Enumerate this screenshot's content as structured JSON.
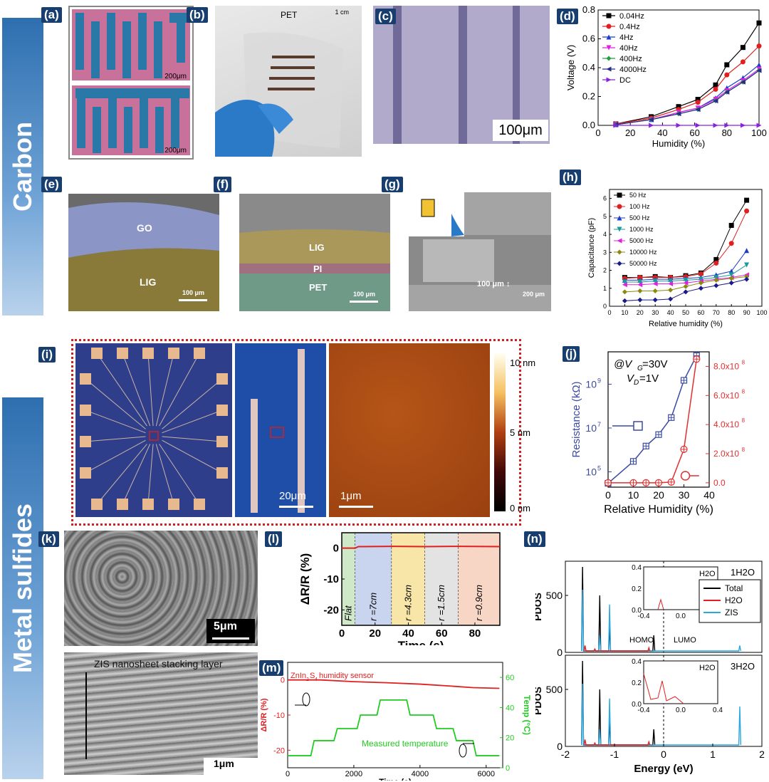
{
  "side_labels": {
    "carbon": "Carbon",
    "metal_sulfides": "Metal sulfides"
  },
  "panels": {
    "a": {
      "tag": "(a)",
      "scale1": "200μm",
      "scale2": "200μm"
    },
    "b": {
      "tag": "(b)",
      "label": "PET",
      "scale": "1 cm"
    },
    "c": {
      "tag": "(c)",
      "scale": "100μm"
    },
    "d": {
      "tag": "(d)"
    },
    "e": {
      "tag": "(e)",
      "top": "GO",
      "bottom": "LIG",
      "scale": "100 μm"
    },
    "f": {
      "tag": "(f)",
      "l1": "LIG",
      "l2": "PI",
      "l3": "PET",
      "scale": "100 μm"
    },
    "g": {
      "tag": "(g)",
      "annot": "100 μm ↕",
      "scale": "200 μm"
    },
    "h": {
      "tag": "(h)"
    },
    "i": {
      "tag": "(i)",
      "scale1": "20μm",
      "scale2": "1μm",
      "cbar": [
        "10 nm",
        "5 nm",
        "0 nm"
      ]
    },
    "j": {
      "tag": "(j)",
      "cond1": "@V",
      "cond1_sub": "G",
      "cond1_rest": "=30V",
      "cond2": "V",
      "cond2_sub": "D",
      "cond2_rest": "=1V"
    },
    "k": {
      "tag": "(k)",
      "scale": "5μm",
      "caption": "ZIS nanosheet stacking layer",
      "scale2": "1μm"
    },
    "l": {
      "tag": "(l)"
    },
    "m": {
      "tag": "(m)",
      "legend_red": "ZnIn",
      "legend_red_rest": "humidity sensor",
      "legend_green": "Measured temperature"
    },
    "n": {
      "tag": "(n)"
    }
  },
  "chart_data": [
    {
      "id": "d",
      "type": "line",
      "xlabel": "Humidity (%)",
      "ylabel": "Voltage (V)",
      "xlim": [
        0,
        100
      ],
      "ylim": [
        0,
        0.8
      ],
      "xticks": [
        0,
        20,
        40,
        60,
        80,
        100
      ],
      "yticks": [
        0.0,
        0.2,
        0.4,
        0.6,
        0.8
      ],
      "x": [
        11,
        33,
        50,
        62,
        73,
        80,
        90,
        100
      ],
      "series": [
        {
          "name": "0.04Hz",
          "color": "#000000",
          "marker": "square",
          "values": [
            0.01,
            0.06,
            0.13,
            0.18,
            0.28,
            0.42,
            0.54,
            0.71
          ]
        },
        {
          "name": "0.4Hz",
          "color": "#e02020",
          "marker": "circle",
          "values": [
            0.01,
            0.05,
            0.11,
            0.16,
            0.25,
            0.35,
            0.44,
            0.55
          ]
        },
        {
          "name": "4Hz",
          "color": "#1a3ccc",
          "marker": "triangle",
          "values": [
            0.005,
            0.04,
            0.09,
            0.12,
            0.19,
            0.26,
            0.33,
            0.42
          ]
        },
        {
          "name": "40Hz",
          "color": "#e020e0",
          "marker": "tri-down",
          "values": [
            0.005,
            0.04,
            0.09,
            0.12,
            0.18,
            0.24,
            0.31,
            0.39
          ]
        },
        {
          "name": "400Hz",
          "color": "#20a040",
          "marker": "diamond",
          "values": [
            0.005,
            0.04,
            0.08,
            0.11,
            0.17,
            0.23,
            0.3,
            0.38
          ]
        },
        {
          "name": "4000Hz",
          "color": "#2a2a8a",
          "marker": "tri-left",
          "values": [
            0.005,
            0.04,
            0.08,
            0.11,
            0.17,
            0.23,
            0.3,
            0.38
          ]
        },
        {
          "name": "DC",
          "color": "#8a20e0",
          "marker": "tri-right",
          "values": [
            0.0,
            0.0,
            0.0,
            0.0,
            0.0,
            0.0,
            0.0,
            0.0
          ]
        }
      ]
    },
    {
      "id": "h",
      "type": "line",
      "xlabel": "Relative humidity (%)",
      "ylabel": "Capacitance (pF)",
      "xlim": [
        0,
        100
      ],
      "ylim": [
        0,
        6.5
      ],
      "xticks": [
        0,
        10,
        20,
        30,
        40,
        50,
        60,
        70,
        80,
        90,
        100
      ],
      "yticks": [
        0,
        1,
        2,
        3,
        4,
        5,
        6
      ],
      "x": [
        10,
        20,
        30,
        40,
        50,
        60,
        70,
        80,
        90
      ],
      "series": [
        {
          "name": "50 Hz",
          "color": "#000000",
          "values": [
            1.6,
            1.6,
            1.65,
            1.6,
            1.7,
            1.85,
            2.6,
            4.5,
            5.9
          ]
        },
        {
          "name": "100 Hz",
          "color": "#e02020",
          "values": [
            1.55,
            1.6,
            1.6,
            1.6,
            1.65,
            1.8,
            2.4,
            3.5,
            5.3
          ]
        },
        {
          "name": "500 Hz",
          "color": "#1a3ccc",
          "values": [
            1.45,
            1.45,
            1.5,
            1.5,
            1.55,
            1.6,
            1.75,
            1.95,
            3.1
          ]
        },
        {
          "name": "1000 Hz",
          "color": "#1a9a9a",
          "values": [
            1.35,
            1.35,
            1.4,
            1.4,
            1.45,
            1.5,
            1.6,
            1.75,
            2.3
          ]
        },
        {
          "name": "5000 Hz",
          "color": "#e020e0",
          "values": [
            1.2,
            1.2,
            1.25,
            1.25,
            1.3,
            1.4,
            1.5,
            1.6,
            1.75
          ]
        },
        {
          "name": "10000 Hz",
          "color": "#8a8a10",
          "values": [
            0.8,
            0.85,
            0.85,
            0.9,
            1.1,
            1.3,
            1.45,
            1.55,
            1.65
          ]
        },
        {
          "name": "50000 Hz",
          "color": "#1a1a8a",
          "values": [
            0.3,
            0.35,
            0.35,
            0.4,
            0.8,
            1.0,
            1.15,
            1.3,
            1.5
          ]
        }
      ]
    },
    {
      "id": "j",
      "type": "line",
      "xlabel": "Relative Humidity (%)",
      "ylabel": "Resistance (kΩ)",
      "xlim": [
        0,
        40
      ],
      "xticks": [
        0,
        10,
        20,
        30,
        40
      ],
      "yticks_left": [
        "10^5",
        "10^7",
        "10^9"
      ],
      "yticks_right": [
        "0.0",
        "2.0x10^8",
        "4.0x10^8",
        "6.0x10^8",
        "8.0x10^8"
      ],
      "x": [
        0,
        10,
        15,
        20,
        25,
        30,
        35
      ],
      "series": [
        {
          "name": "log",
          "color": "#3a4aa0",
          "axis": "left-log",
          "values": [
            30000,
            300000,
            1500000,
            5000000,
            30000000,
            1500000000,
            20000000000
          ]
        },
        {
          "name": "linear",
          "color": "#e03030",
          "axis": "right",
          "values": [
            0,
            0,
            0,
            0,
            5000000,
            230000000,
            850000000
          ]
        }
      ]
    },
    {
      "id": "l",
      "type": "line",
      "xlabel": "Time (s)",
      "ylabel": "ΔR/R",
      "xlim": [
        0,
        95
      ],
      "ylim": [
        -25,
        5
      ],
      "xticks": [
        0,
        20,
        40,
        60,
        80
      ],
      "yticks": [
        0,
        -10,
        -20
      ],
      "regions": [
        {
          "label": "Flat",
          "from": 0,
          "to": 8,
          "color": "#cfe8c8"
        },
        {
          "label": "r =7cm",
          "from": 8,
          "to": 30,
          "color": "#c9d4ee"
        },
        {
          "label": "r =4.3cm",
          "from": 30,
          "to": 50,
          "color": "#f7e6a8"
        },
        {
          "label": "r =1.5cm",
          "from": 50,
          "to": 70,
          "color": "#e3e3e3"
        },
        {
          "label": "r =0.9cm",
          "from": 70,
          "to": 95,
          "color": "#f8d6c6"
        }
      ],
      "series": [
        {
          "name": "signal",
          "color": "#e02020",
          "x": [
            0,
            8,
            10,
            30,
            50,
            70,
            95
          ],
          "values": [
            0,
            0,
            0.5,
            0.6,
            0.5,
            0.6,
            0.5
          ]
        }
      ]
    },
    {
      "id": "m",
      "type": "line",
      "xlabel": "Time (s)",
      "ylabel_left": "ΔR/R",
      "ylabel_right": "Temp (°C)",
      "xlim": [
        0,
        6500
      ],
      "xticks": [
        0,
        2000,
        4000,
        6000
      ],
      "ylim_left": [
        -25,
        5
      ],
      "yticks_left": [
        0,
        -10,
        -20
      ],
      "ylim_right": [
        0,
        70
      ],
      "yticks_right": [
        0,
        20,
        40,
        60
      ],
      "series": [
        {
          "name": "resistance",
          "color": "#e02020",
          "axis": "left",
          "x": [
            0,
            1000,
            2000,
            3000,
            4000,
            5000,
            5600,
            6400
          ],
          "values": [
            0,
            0,
            -0.5,
            -0.8,
            -1.2,
            -1.8,
            -2.2,
            -2.4
          ]
        },
        {
          "name": "temperature",
          "color": "#22cc22",
          "axis": "right",
          "x": [
            0,
            700,
            800,
            1400,
            1500,
            2100,
            2200,
            2700,
            2800,
            3600,
            3700,
            4400,
            4500,
            5000,
            5100,
            5600,
            5700,
            6400
          ],
          "values": [
            8,
            8,
            18,
            18,
            26,
            26,
            35,
            35,
            45,
            45,
            35,
            35,
            26,
            26,
            18,
            18,
            8,
            8
          ]
        }
      ]
    },
    {
      "id": "n",
      "type": "line",
      "xlabel": "Energy (eV)",
      "ylabel": "PDOS",
      "xlim": [
        -2,
        2
      ],
      "xticks": [
        -2,
        -1,
        0,
        1,
        2
      ],
      "legend": [
        "Total",
        "H2O",
        "ZIS"
      ],
      "subplots": [
        {
          "label": "1H2O",
          "ylim": [
            0,
            800
          ],
          "yticks": [
            0,
            500
          ],
          "inset_label": "H2O",
          "inset_yticks": [
            0.0,
            0.2,
            0.4
          ],
          "inset_xticks": [
            -0.4,
            0.0,
            0.4
          ],
          "arrows": [
            "HOMO",
            "LUMO"
          ]
        },
        {
          "label": "3H2O",
          "ylim": [
            0,
            800
          ],
          "yticks": [
            0,
            500
          ],
          "inset_label": "H2O",
          "inset_yticks": [
            0.0,
            0.2,
            0.4
          ],
          "inset_xticks": [
            -0.4,
            0.0,
            0.4
          ]
        }
      ],
      "series": [
        {
          "name": "Total",
          "color": "#000000"
        },
        {
          "name": "H2O",
          "color": "#e02020"
        },
        {
          "name": "ZIS",
          "color": "#2aa8e0"
        }
      ]
    }
  ]
}
